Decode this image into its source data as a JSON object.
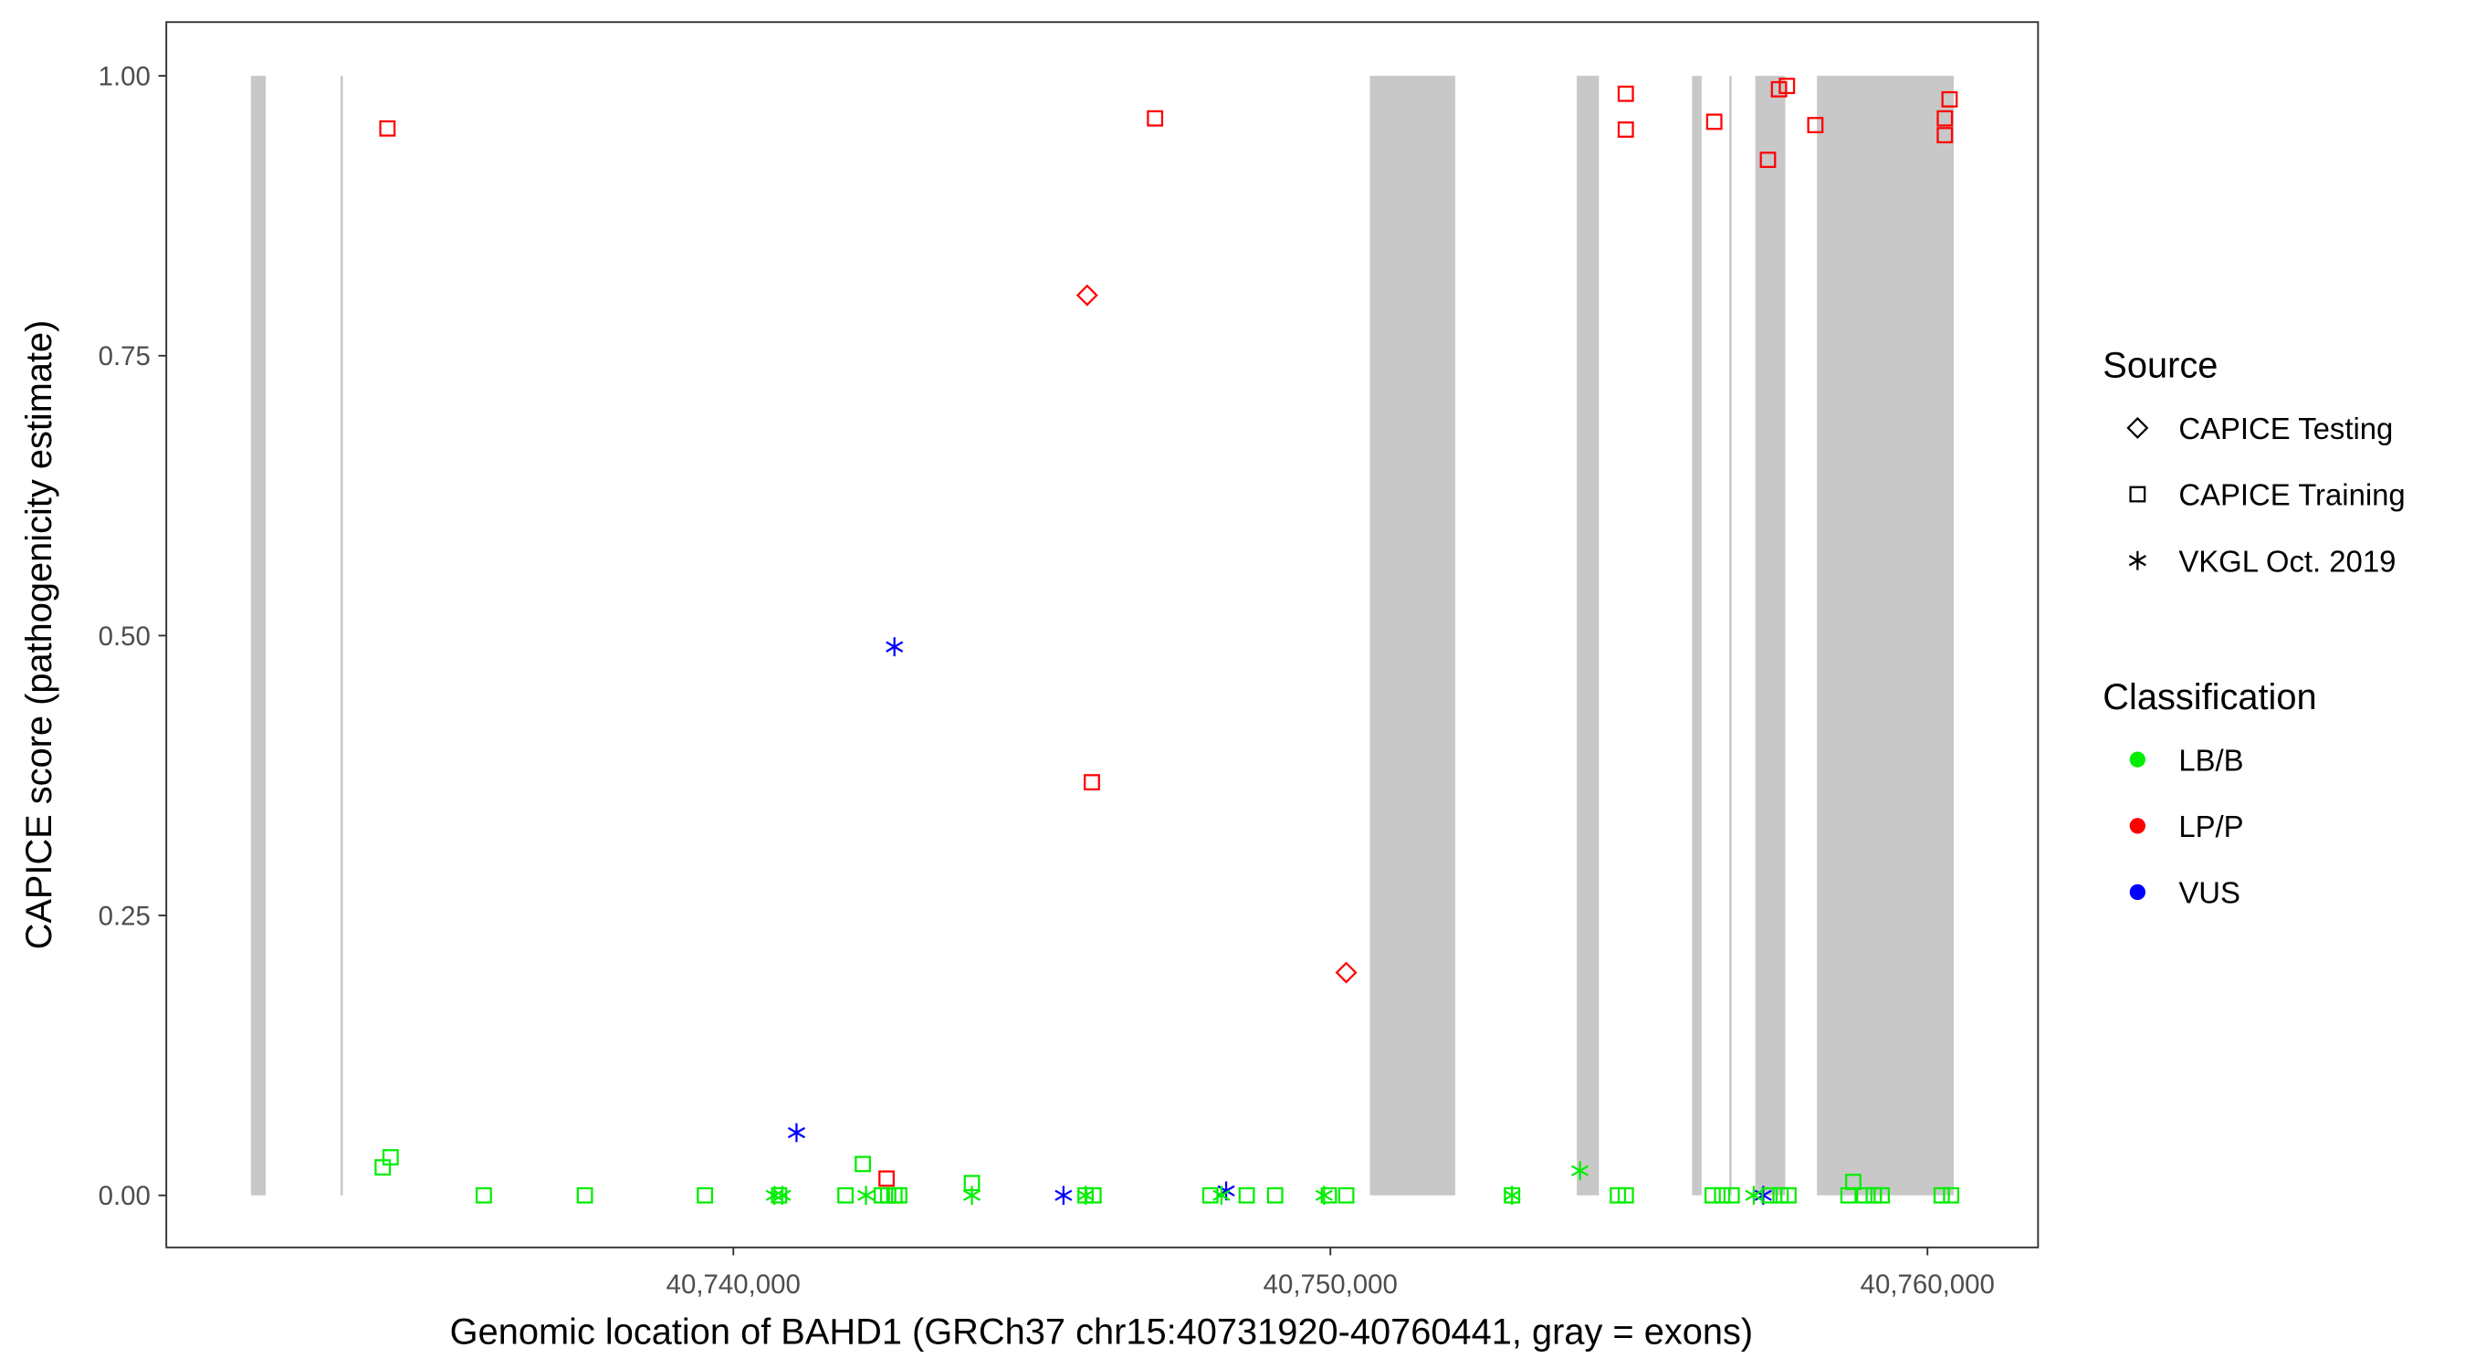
{
  "chart_data": {
    "type": "scatter",
    "title": "",
    "xlabel": "Genomic location of BAHD1 (GRCh37 chr15:40731920-40760441, gray = exons)",
    "ylabel": "CAPICE score (pathogenicity estimate)",
    "xlim": [
      40730503,
      40761852
    ],
    "ylim": [
      -0.0465,
      1.048
    ],
    "x_ticks": [
      40740000,
      40750000,
      40760000
    ],
    "x_tick_labels": [
      "40,740,000",
      "40,750,000",
      "40,760,000"
    ],
    "y_ticks": [
      0,
      0.25,
      0.5,
      0.75,
      1.0
    ],
    "y_tick_labels": [
      "0.00",
      "0.25",
      "0.50",
      "0.75",
      "1.00"
    ],
    "grid": false,
    "exons": [
      [
        40731920,
        40732169
      ],
      [
        40733420,
        40733460
      ],
      [
        40750661,
        40752090
      ],
      [
        40754127,
        40754497
      ],
      [
        40756058,
        40756217
      ],
      [
        40756680,
        40756710
      ],
      [
        40757116,
        40757619
      ],
      [
        40758148,
        40760441
      ]
    ],
    "exon_color": "#c8c8c8",
    "legend_placement": "right",
    "legend": {
      "source_title": "Source",
      "source_items": [
        {
          "label": "CAPICE Testing",
          "shape": "diamond"
        },
        {
          "label": "CAPICE Training",
          "shape": "square"
        },
        {
          "label": "VKGL Oct. 2019",
          "shape": "asterisk"
        }
      ],
      "class_title": "Classification",
      "class_items": [
        {
          "label": "LB/B",
          "color": "#00ee00"
        },
        {
          "label": "LP/P",
          "color": "#ff0000"
        },
        {
          "label": "VUS",
          "color": "#0000ff"
        }
      ]
    },
    "points": [
      {
        "x": 40734206,
        "y": 0.953,
        "source": "square",
        "class": "LP/P"
      },
      {
        "x": 40747063,
        "y": 0.962,
        "source": "square",
        "class": "LP/P"
      },
      {
        "x": 40754947,
        "y": 0.984,
        "source": "square",
        "class": "LP/P"
      },
      {
        "x": 40754947,
        "y": 0.952,
        "source": "square",
        "class": "LP/P"
      },
      {
        "x": 40756429,
        "y": 0.959,
        "source": "square",
        "class": "LP/P"
      },
      {
        "x": 40757328,
        "y": 0.925,
        "source": "square",
        "class": "LP/P"
      },
      {
        "x": 40757513,
        "y": 0.988,
        "source": "square",
        "class": "LP/P"
      },
      {
        "x": 40757646,
        "y": 0.991,
        "source": "square",
        "class": "LP/P"
      },
      {
        "x": 40758122,
        "y": 0.956,
        "source": "square",
        "class": "LP/P"
      },
      {
        "x": 40760291,
        "y": 0.962,
        "source": "square",
        "class": "LP/P"
      },
      {
        "x": 40760370,
        "y": 0.979,
        "source": "square",
        "class": "LP/P"
      },
      {
        "x": 40760291,
        "y": 0.947,
        "source": "square",
        "class": "LP/P"
      },
      {
        "x": 40746005,
        "y": 0.369,
        "source": "square",
        "class": "LP/P"
      },
      {
        "x": 40742566,
        "y": 0.015,
        "source": "square",
        "class": "LP/P"
      },
      {
        "x": 40745926,
        "y": 0.804,
        "source": "diamond",
        "class": "LP/P"
      },
      {
        "x": 40750265,
        "y": 0.199,
        "source": "diamond",
        "class": "LP/P"
      },
      {
        "x": 40742698,
        "y": 0.49,
        "source": "asterisk",
        "class": "VUS"
      },
      {
        "x": 40741058,
        "y": 0.056,
        "source": "asterisk",
        "class": "VUS"
      },
      {
        "x": 40745529,
        "y": 0.0,
        "source": "asterisk",
        "class": "VUS"
      },
      {
        "x": 40748254,
        "y": 0.004,
        "source": "asterisk",
        "class": "VUS"
      },
      {
        "x": 40757249,
        "y": 0.0,
        "source": "asterisk",
        "class": "VUS"
      },
      {
        "x": 40734127,
        "y": 0.025,
        "source": "square",
        "class": "LB/B"
      },
      {
        "x": 40734259,
        "y": 0.034,
        "source": "square",
        "class": "LB/B"
      },
      {
        "x": 40735820,
        "y": 0.0,
        "source": "square",
        "class": "LB/B"
      },
      {
        "x": 40737513,
        "y": 0.0,
        "source": "square",
        "class": "LB/B"
      },
      {
        "x": 40739524,
        "y": 0.0,
        "source": "square",
        "class": "LB/B"
      },
      {
        "x": 40740688,
        "y": 0.0,
        "source": "asterisk",
        "class": "LB/B"
      },
      {
        "x": 40740767,
        "y": 0.0,
        "source": "square",
        "class": "LB/B"
      },
      {
        "x": 40740820,
        "y": 0.0,
        "source": "asterisk",
        "class": "LB/B"
      },
      {
        "x": 40741878,
        "y": 0.0,
        "source": "square",
        "class": "LB/B"
      },
      {
        "x": 40742169,
        "y": 0.028,
        "source": "square",
        "class": "LB/B"
      },
      {
        "x": 40742222,
        "y": 0.0,
        "source": "asterisk",
        "class": "LB/B"
      },
      {
        "x": 40742487,
        "y": 0.0,
        "source": "square",
        "class": "LB/B"
      },
      {
        "x": 40742593,
        "y": 0.0,
        "source": "square",
        "class": "LB/B"
      },
      {
        "x": 40742698,
        "y": 0.0,
        "source": "square",
        "class": "LB/B"
      },
      {
        "x": 40742778,
        "y": 0.0,
        "source": "square",
        "class": "LB/B"
      },
      {
        "x": 40743995,
        "y": 0.011,
        "source": "square",
        "class": "LB/B"
      },
      {
        "x": 40743995,
        "y": 0.0,
        "source": "asterisk",
        "class": "LB/B"
      },
      {
        "x": 40745899,
        "y": 0.0,
        "source": "asterisk",
        "class": "LB/B"
      },
      {
        "x": 40745899,
        "y": 0.0,
        "source": "square",
        "class": "LB/B"
      },
      {
        "x": 40746032,
        "y": 0.0,
        "source": "square",
        "class": "LB/B"
      },
      {
        "x": 40747989,
        "y": 0.0,
        "source": "square",
        "class": "LB/B"
      },
      {
        "x": 40748175,
        "y": 0.0,
        "source": "asterisk",
        "class": "LB/B"
      },
      {
        "x": 40748598,
        "y": 0.0,
        "source": "square",
        "class": "LB/B"
      },
      {
        "x": 40749074,
        "y": 0.0,
        "source": "square",
        "class": "LB/B"
      },
      {
        "x": 40749894,
        "y": 0.0,
        "source": "asterisk",
        "class": "LB/B"
      },
      {
        "x": 40749974,
        "y": 0.0,
        "source": "square",
        "class": "LB/B"
      },
      {
        "x": 40750265,
        "y": 0.0,
        "source": "square",
        "class": "LB/B"
      },
      {
        "x": 40753042,
        "y": 0.0,
        "source": "asterisk",
        "class": "LB/B"
      },
      {
        "x": 40753042,
        "y": 0.0,
        "source": "square",
        "class": "LB/B"
      },
      {
        "x": 40754180,
        "y": 0.022,
        "source": "asterisk",
        "class": "LB/B"
      },
      {
        "x": 40754815,
        "y": 0.0,
        "source": "square",
        "class": "LB/B"
      },
      {
        "x": 40754947,
        "y": 0.0,
        "source": "square",
        "class": "LB/B"
      },
      {
        "x": 40756402,
        "y": 0.0,
        "source": "square",
        "class": "LB/B"
      },
      {
        "x": 40756561,
        "y": 0.0,
        "source": "square",
        "class": "LB/B"
      },
      {
        "x": 40756720,
        "y": 0.0,
        "source": "square",
        "class": "LB/B"
      },
      {
        "x": 40757090,
        "y": 0.0,
        "source": "asterisk",
        "class": "LB/B"
      },
      {
        "x": 40757354,
        "y": 0.0,
        "source": "square",
        "class": "LB/B"
      },
      {
        "x": 40757540,
        "y": 0.0,
        "source": "square",
        "class": "LB/B"
      },
      {
        "x": 40757672,
        "y": 0.0,
        "source": "square",
        "class": "LB/B"
      },
      {
        "x": 40758677,
        "y": 0.0,
        "source": "square",
        "class": "LB/B"
      },
      {
        "x": 40758757,
        "y": 0.012,
        "source": "square",
        "class": "LB/B"
      },
      {
        "x": 40758942,
        "y": 0.0,
        "source": "square",
        "class": "LB/B"
      },
      {
        "x": 40759101,
        "y": 0.0,
        "source": "square",
        "class": "LB/B"
      },
      {
        "x": 40759233,
        "y": 0.0,
        "source": "square",
        "class": "LB/B"
      },
      {
        "x": 40760238,
        "y": 0.0,
        "source": "square",
        "class": "LB/B"
      },
      {
        "x": 40760397,
        "y": 0.0,
        "source": "square",
        "class": "LB/B"
      }
    ]
  }
}
